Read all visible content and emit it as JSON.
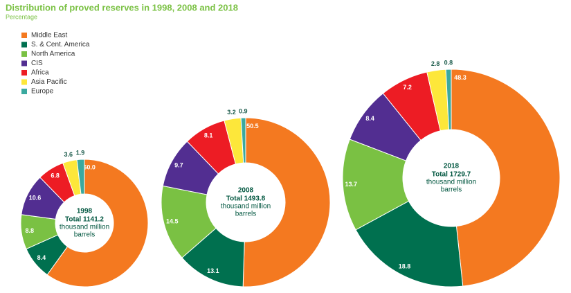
{
  "title": "Distribution of proved reserves in 1998, 2008 and 2018",
  "subtitle": "Percentage",
  "chart_data": [
    {
      "type": "pie",
      "title": "1998",
      "center_lines": [
        "Total 1141.2",
        "thousand million",
        "barrels"
      ],
      "categories": [
        "Middle East",
        "S. & Cent. America",
        "North America",
        "CIS",
        "Africa",
        "Asia Pacific",
        "Europe"
      ],
      "values": [
        60.0,
        8.4,
        8.8,
        10.6,
        6.8,
        3.6,
        1.9
      ],
      "value_labels": [
        "60.0",
        "8.4",
        "8.8",
        "10.6",
        "6.8",
        "3.6",
        "1.9"
      ],
      "colors": [
        "#f47920",
        "#00704f",
        "#7ac143",
        "#522e91",
        "#ed1c24",
        "#fde73a",
        "#3aa99f"
      ]
    },
    {
      "type": "pie",
      "title": "2008",
      "center_lines": [
        "Total 1493.8",
        "thousand million",
        "barrels"
      ],
      "categories": [
        "Middle East",
        "S. & Cent. America",
        "North America",
        "CIS",
        "Africa",
        "Asia Pacific",
        "Europe"
      ],
      "values": [
        50.5,
        13.1,
        14.5,
        9.7,
        8.1,
        3.2,
        0.9
      ],
      "value_labels": [
        "50.5",
        "13.1",
        "14.5",
        "9.7",
        "8.1",
        "3.2",
        "0.9"
      ],
      "colors": [
        "#f47920",
        "#00704f",
        "#7ac143",
        "#522e91",
        "#ed1c24",
        "#fde73a",
        "#3aa99f"
      ]
    },
    {
      "type": "pie",
      "title": "2018",
      "center_lines": [
        "Total 1729.7",
        "thousand million",
        "barrels"
      ],
      "categories": [
        "Middle East",
        "S. & Cent. America",
        "North America",
        "CIS",
        "Africa",
        "Asia Pacific",
        "Europe"
      ],
      "values": [
        48.3,
        18.8,
        13.7,
        8.4,
        7.2,
        2.8,
        0.8
      ],
      "value_labels": [
        "48.3",
        "18.8",
        "13.7",
        "8.4",
        "7.2",
        "2.8",
        "0.8"
      ],
      "colors": [
        "#f47920",
        "#00704f",
        "#7ac143",
        "#522e91",
        "#ed1c24",
        "#fde73a",
        "#3aa99f"
      ]
    }
  ]
}
